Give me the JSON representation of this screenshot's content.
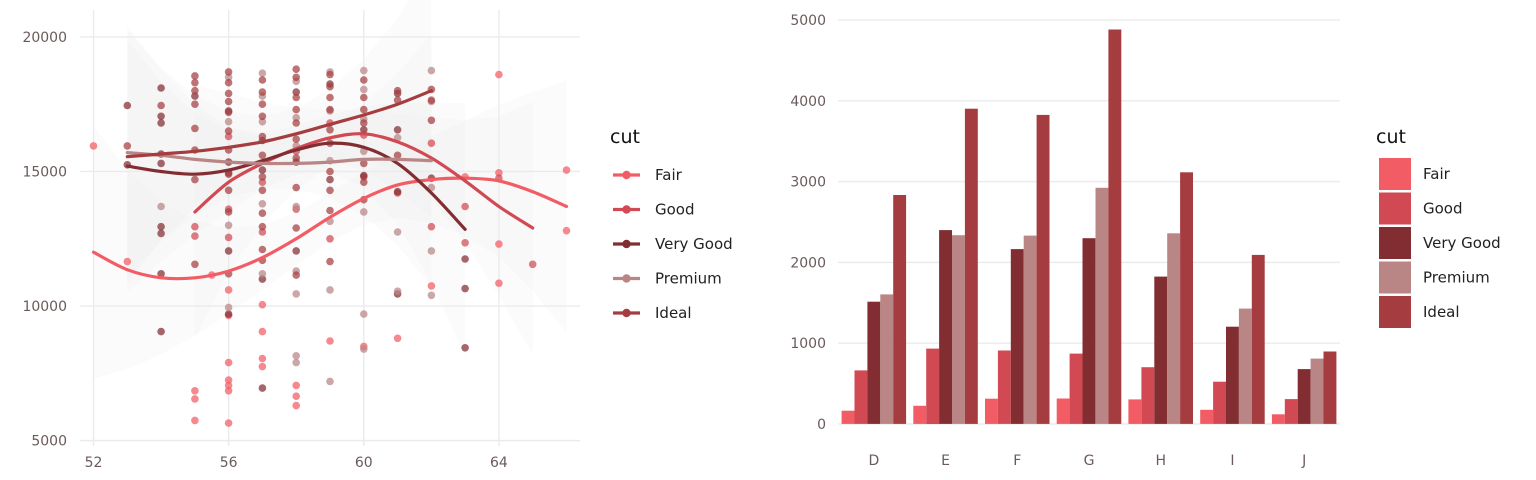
{
  "chart_data": [
    {
      "type": "scatter",
      "title": "",
      "xlabel": "",
      "ylabel": "",
      "xlim": [
        51.6,
        66.4
      ],
      "ylim": [
        4800,
        21000
      ],
      "x_ticks": [
        "52",
        "56",
        "60",
        "64"
      ],
      "x_tick_values": [
        52,
        56,
        60,
        64
      ],
      "y_ticks": [
        "5000",
        "10000",
        "15000",
        "20000"
      ],
      "y_tick_values": [
        5000,
        10000,
        15000,
        20000
      ],
      "grid": true,
      "legend": {
        "title": "cut",
        "position": "right"
      },
      "series": [
        {
          "name": "Fair",
          "color": "#f25c64",
          "points": [
            [
              52,
              15950
            ],
            [
              53,
              11650
            ],
            [
              55,
              6850
            ],
            [
              55,
              6550
            ],
            [
              55,
              5750
            ],
            [
              55.5,
              11150
            ],
            [
              56,
              9650
            ],
            [
              56,
              7900
            ],
            [
              56,
              7250
            ],
            [
              56,
              7050
            ],
            [
              56,
              6850
            ],
            [
              56,
              5650
            ],
            [
              56,
              10600
            ],
            [
              57,
              10050
            ],
            [
              57,
              9050
            ],
            [
              57,
              8050
            ],
            [
              57,
              7750
            ],
            [
              58,
              7050
            ],
            [
              58,
              6650
            ],
            [
              58,
              6300
            ],
            [
              59,
              8700
            ],
            [
              60,
              8500
            ],
            [
              61,
              8800
            ],
            [
              62,
              10750
            ],
            [
              63,
              14800
            ],
            [
              64,
              18600
            ],
            [
              64,
              14950
            ],
            [
              64,
              12300
            ],
            [
              64,
              10850
            ],
            [
              66,
              15050
            ],
            [
              66,
              12800
            ]
          ],
          "trend": [
            [
              52,
              12000
            ],
            [
              53,
              11350
            ],
            [
              54,
              11050
            ],
            [
              55,
              11050
            ],
            [
              56,
              11300
            ],
            [
              57,
              11800
            ],
            [
              58,
              12500
            ],
            [
              59,
              13300
            ],
            [
              60,
              14000
            ],
            [
              61,
              14500
            ],
            [
              62,
              14700
            ],
            [
              63,
              14750
            ],
            [
              64,
              14650
            ],
            [
              65,
              14250
            ],
            [
              66,
              13700
            ]
          ]
        },
        {
          "name": "Good",
          "color": "#d14a53",
          "points": [
            [
              55,
              12950
            ],
            [
              55,
              12600
            ],
            [
              56,
              13600
            ],
            [
              56,
              12550
            ],
            [
              56,
              16300
            ],
            [
              57,
              12750
            ],
            [
              57,
              14600
            ],
            [
              58,
              13600
            ],
            [
              58,
              15750
            ],
            [
              59,
              12500
            ],
            [
              59,
              16800
            ],
            [
              60,
              14800
            ],
            [
              60,
              16350
            ],
            [
              61,
              14200
            ],
            [
              62,
              12950
            ],
            [
              62,
              16050
            ],
            [
              63,
              13700
            ],
            [
              63,
              12350
            ],
            [
              64,
              14750
            ],
            [
              65,
              11550
            ]
          ],
          "trend": [
            [
              55,
              13500
            ],
            [
              56,
              14600
            ],
            [
              57,
              15300
            ],
            [
              58,
              15850
            ],
            [
              59,
              16250
            ],
            [
              60,
              16400
            ],
            [
              61,
              16100
            ],
            [
              62,
              15500
            ],
            [
              63,
              14650
            ],
            [
              64,
              13700
            ],
            [
              65,
              12900
            ]
          ]
        },
        {
          "name": "Very Good",
          "color": "#822d31",
          "points": [
            [
              53,
              17450
            ],
            [
              53,
              15250
            ],
            [
              54,
              18100
            ],
            [
              54,
              17050
            ],
            [
              54,
              16800
            ],
            [
              54,
              15650
            ],
            [
              54,
              15300
            ],
            [
              54,
              12950
            ],
            [
              54,
              12700
            ],
            [
              54,
              11200
            ],
            [
              54,
              9050
            ],
            [
              55,
              17800
            ],
            [
              56,
              17250
            ],
            [
              56,
              15350
            ],
            [
              56,
              12050
            ],
            [
              56,
              9700
            ],
            [
              56,
              14950
            ],
            [
              57,
              16150
            ],
            [
              57,
              15050
            ],
            [
              57,
              6950
            ],
            [
              57,
              11000
            ],
            [
              58,
              17950
            ],
            [
              58,
              15350
            ],
            [
              58,
              12050
            ],
            [
              59,
              18250
            ],
            [
              59,
              14700
            ],
            [
              60,
              16550
            ],
            [
              60,
              14850
            ],
            [
              61,
              17900
            ],
            [
              61,
              16550
            ],
            [
              61,
              14250
            ],
            [
              61,
              10450
            ],
            [
              62,
              14750
            ],
            [
              63,
              11750
            ],
            [
              63,
              10650
            ],
            [
              63,
              8450
            ]
          ],
          "trend": [
            [
              53,
              15200
            ],
            [
              54,
              15000
            ],
            [
              55,
              14900
            ],
            [
              56,
              15050
            ],
            [
              57,
              15400
            ],
            [
              58,
              15800
            ],
            [
              59,
              16050
            ],
            [
              60,
              15900
            ],
            [
              61,
              15300
            ],
            [
              62,
              14200
            ],
            [
              63,
              12850
            ]
          ]
        },
        {
          "name": "Premium",
          "color": "#b98585",
          "points": [
            [
              54,
              13700
            ],
            [
              56,
              18500
            ],
            [
              56,
              16850
            ],
            [
              56,
              13000
            ],
            [
              56,
              9950
            ],
            [
              57,
              18650
            ],
            [
              57,
              17800
            ],
            [
              57,
              16850
            ],
            [
              57,
              13800
            ],
            [
              57,
              11200
            ],
            [
              58,
              18350
            ],
            [
              58,
              17000
            ],
            [
              58,
              15950
            ],
            [
              58,
              13700
            ],
            [
              58,
              11300
            ],
            [
              58,
              10450
            ],
            [
              58,
              8150
            ],
            [
              58,
              7900
            ],
            [
              59,
              18700
            ],
            [
              59,
              17250
            ],
            [
              59,
              15400
            ],
            [
              59,
              13150
            ],
            [
              59,
              10600
            ],
            [
              59,
              7200
            ],
            [
              60,
              18750
            ],
            [
              60,
              18050
            ],
            [
              60,
              16950
            ],
            [
              60,
              15750
            ],
            [
              60,
              13500
            ],
            [
              60,
              9700
            ],
            [
              60,
              8400
            ],
            [
              61,
              16250
            ],
            [
              61,
              12750
            ],
            [
              61,
              10550
            ],
            [
              62,
              18750
            ],
            [
              62,
              17600
            ],
            [
              62,
              14400
            ],
            [
              62,
              12050
            ],
            [
              62,
              10400
            ]
          ],
          "trend": [
            [
              53,
              15700
            ],
            [
              54,
              15600
            ],
            [
              55,
              15450
            ],
            [
              56,
              15350
            ],
            [
              57,
              15300
            ],
            [
              58,
              15300
            ],
            [
              59,
              15350
            ],
            [
              60,
              15450
            ],
            [
              61,
              15450
            ],
            [
              62,
              15400
            ]
          ]
        },
        {
          "name": "Ideal",
          "color": "#a53d40",
          "points": [
            [
              53,
              15950
            ],
            [
              54,
              17450
            ],
            [
              55,
              18550
            ],
            [
              55,
              18300
            ],
            [
              55,
              18000
            ],
            [
              55,
              17500
            ],
            [
              55,
              16600
            ],
            [
              55,
              15800
            ],
            [
              55,
              14700
            ],
            [
              55,
              11550
            ],
            [
              56,
              18700
            ],
            [
              56,
              18300
            ],
            [
              56,
              17900
            ],
            [
              56,
              17600
            ],
            [
              56,
              17200
            ],
            [
              56,
              16500
            ],
            [
              56,
              15800
            ],
            [
              56,
              14900
            ],
            [
              56,
              14300
            ],
            [
              56,
              13500
            ],
            [
              56,
              11200
            ],
            [
              57,
              18400
            ],
            [
              57,
              17950
            ],
            [
              57,
              17500
            ],
            [
              57,
              17050
            ],
            [
              57,
              16300
            ],
            [
              57,
              15600
            ],
            [
              57,
              14800
            ],
            [
              57,
              14300
            ],
            [
              57,
              13450
            ],
            [
              57,
              12950
            ],
            [
              57,
              12100
            ],
            [
              57,
              11700
            ],
            [
              58,
              18800
            ],
            [
              58,
              18500
            ],
            [
              58,
              17750
            ],
            [
              58,
              17300
            ],
            [
              58,
              16800
            ],
            [
              58,
              16200
            ],
            [
              58,
              15500
            ],
            [
              58,
              14400
            ],
            [
              58,
              12900
            ],
            [
              58,
              11150
            ],
            [
              59,
              18600
            ],
            [
              59,
              18150
            ],
            [
              59,
              17750
            ],
            [
              59,
              17300
            ],
            [
              59,
              16550
            ],
            [
              59,
              16050
            ],
            [
              59,
              15000
            ],
            [
              59,
              14300
            ],
            [
              59,
              13550
            ],
            [
              59,
              11650
            ],
            [
              60,
              18400
            ],
            [
              60,
              17750
            ],
            [
              60,
              17300
            ],
            [
              60,
              16800
            ],
            [
              60,
              15300
            ],
            [
              60,
              14600
            ],
            [
              60,
              13950
            ],
            [
              61,
              18000
            ],
            [
              61,
              17650
            ],
            [
              61,
              15600
            ],
            [
              62,
              18050
            ],
            [
              62,
              17650
            ],
            [
              62,
              16900
            ]
          ],
          "trend": [
            [
              53,
              15550
            ],
            [
              54,
              15650
            ],
            [
              55,
              15750
            ],
            [
              56,
              15900
            ],
            [
              57,
              16100
            ],
            [
              58,
              16400
            ],
            [
              59,
              16750
            ],
            [
              60,
              17100
            ],
            [
              61,
              17500
            ],
            [
              62,
              18000
            ]
          ]
        }
      ]
    },
    {
      "type": "bar",
      "title": "",
      "xlabel": "",
      "ylabel": "",
      "categories": [
        "D",
        "E",
        "F",
        "G",
        "H",
        "I",
        "J"
      ],
      "ylim": [
        -125,
        5125
      ],
      "y_ticks": [
        "0",
        "1000",
        "2000",
        "3000",
        "4000",
        "5000"
      ],
      "y_tick_values": [
        0,
        1000,
        2000,
        3000,
        4000,
        5000
      ],
      "grid": true,
      "legend": {
        "title": "cut",
        "position": "right"
      },
      "series": [
        {
          "name": "Fair",
          "color": "#f25c64",
          "values": [
            163,
            224,
            312,
            314,
            303,
            175,
            119
          ]
        },
        {
          "name": "Good",
          "color": "#d14a53",
          "values": [
            662,
            933,
            909,
            871,
            702,
            522,
            307
          ]
        },
        {
          "name": "Very Good",
          "color": "#822d31",
          "values": [
            1513,
            2400,
            2164,
            2299,
            1824,
            1204,
            678
          ]
        },
        {
          "name": "Premium",
          "color": "#b98585",
          "values": [
            1603,
            2337,
            2331,
            2924,
            2360,
            1428,
            808
          ]
        },
        {
          "name": "Ideal",
          "color": "#a53d40",
          "values": [
            2834,
            3903,
            3826,
            4884,
            3115,
            2093,
            896
          ]
        }
      ]
    }
  ]
}
